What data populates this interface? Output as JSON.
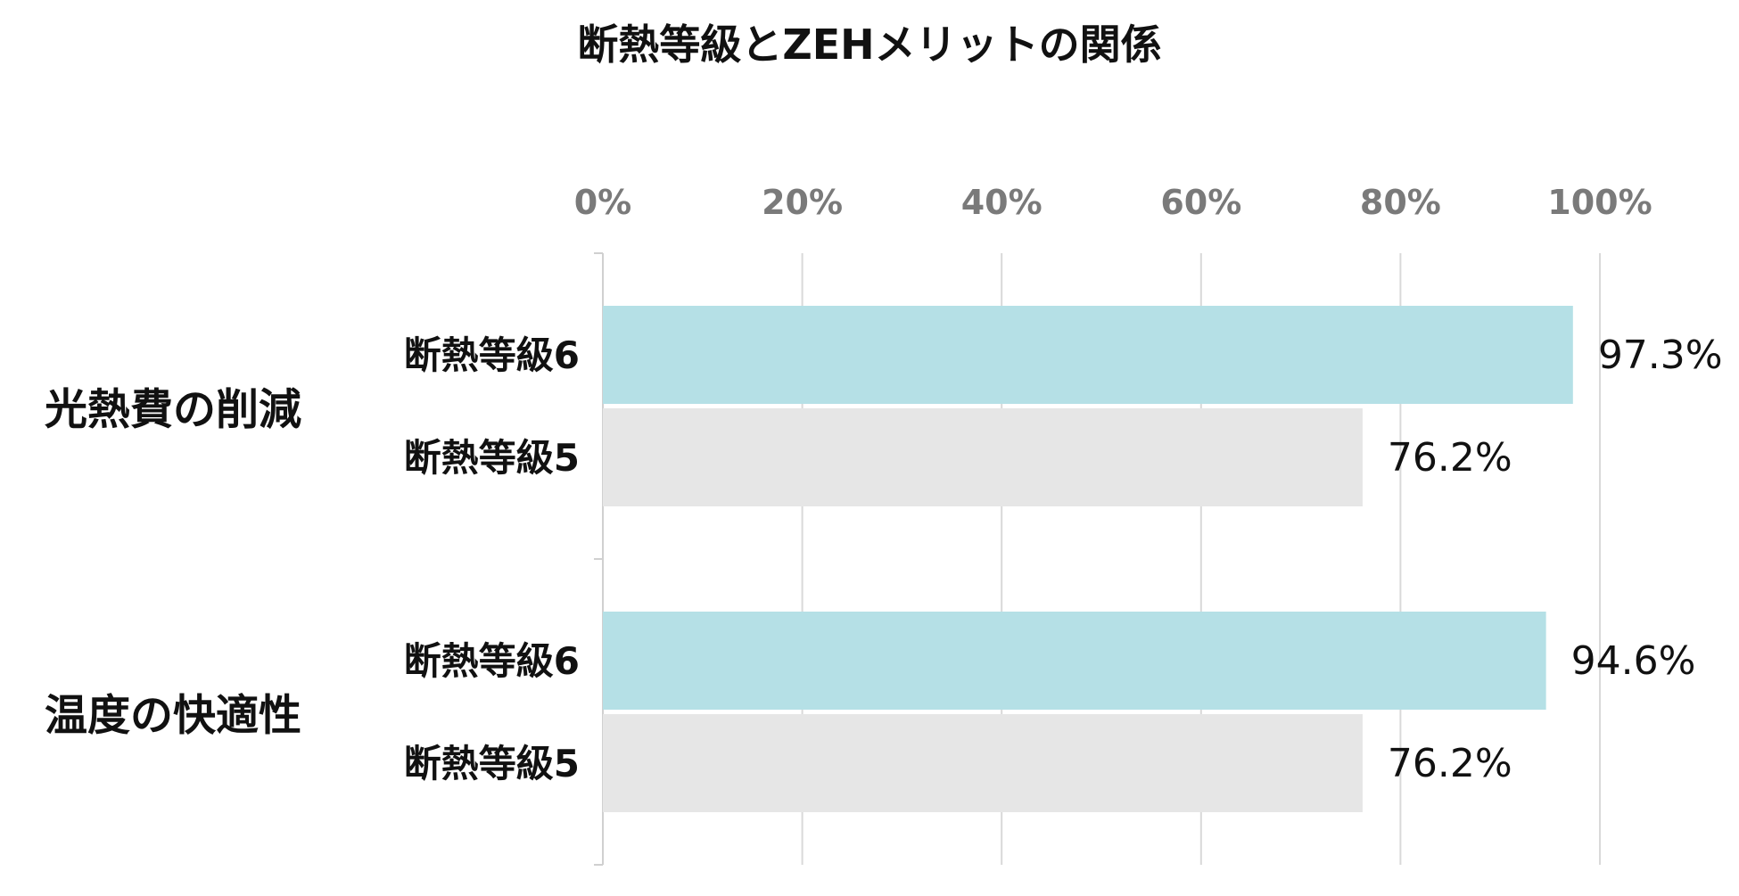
{
  "chart_data": {
    "type": "bar",
    "orientation": "horizontal",
    "title": "断熱等級とZEHメリットの関係",
    "xlim": [
      0,
      100
    ],
    "x_ticks": [
      "0%",
      "20%",
      "40%",
      "60%",
      "80%",
      "100%"
    ],
    "grid": true,
    "groups": [
      {
        "label": "光熱費の削減",
        "bars": [
          {
            "label": "断熱等級6",
            "value": 97.3,
            "value_label": "97.3%",
            "color": "#b5e0e6"
          },
          {
            "label": "断熱等級5",
            "value": 76.2,
            "value_label": "76.2%",
            "color": "#e6e6e6"
          }
        ]
      },
      {
        "label": "温度の快適性",
        "bars": [
          {
            "label": "断熱等級6",
            "value": 94.6,
            "value_label": "94.6%",
            "color": "#b5e0e6"
          },
          {
            "label": "断熱等級5",
            "value": 76.2,
            "value_label": "76.2%",
            "color": "#e6e6e6"
          }
        ]
      }
    ]
  }
}
